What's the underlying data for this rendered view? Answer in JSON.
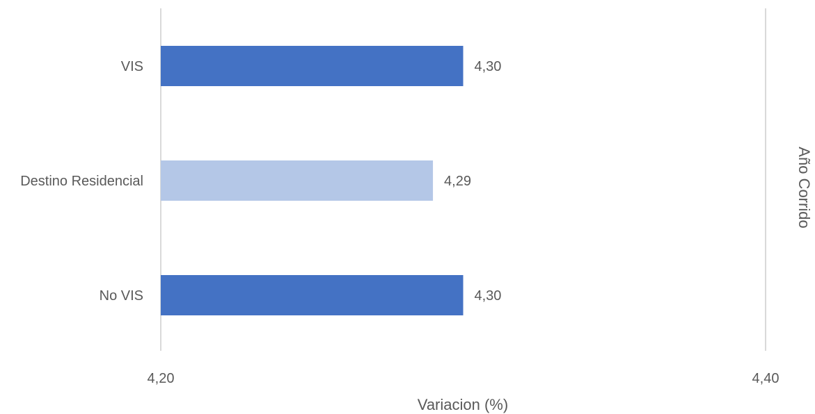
{
  "chart_data": {
    "type": "bar",
    "orientation": "horizontal",
    "categories": [
      "VIS",
      "Destino Residencial",
      "No VIS"
    ],
    "values": [
      4.3,
      4.29,
      4.3
    ],
    "value_labels": [
      "4,30",
      "4,29",
      "4,30"
    ],
    "bar_colors": [
      "#4472c4",
      "#b4c7e7",
      "#4472c4"
    ],
    "xlim": [
      4.2,
      4.4
    ],
    "xticks": [
      4.2,
      4.4
    ],
    "xtick_labels": [
      "4,20",
      "4,40"
    ],
    "xlabel": "Variacion (%)",
    "secondary_label": "Año Corrido",
    "grid": true,
    "gridline_color": "#d9d9d9"
  }
}
